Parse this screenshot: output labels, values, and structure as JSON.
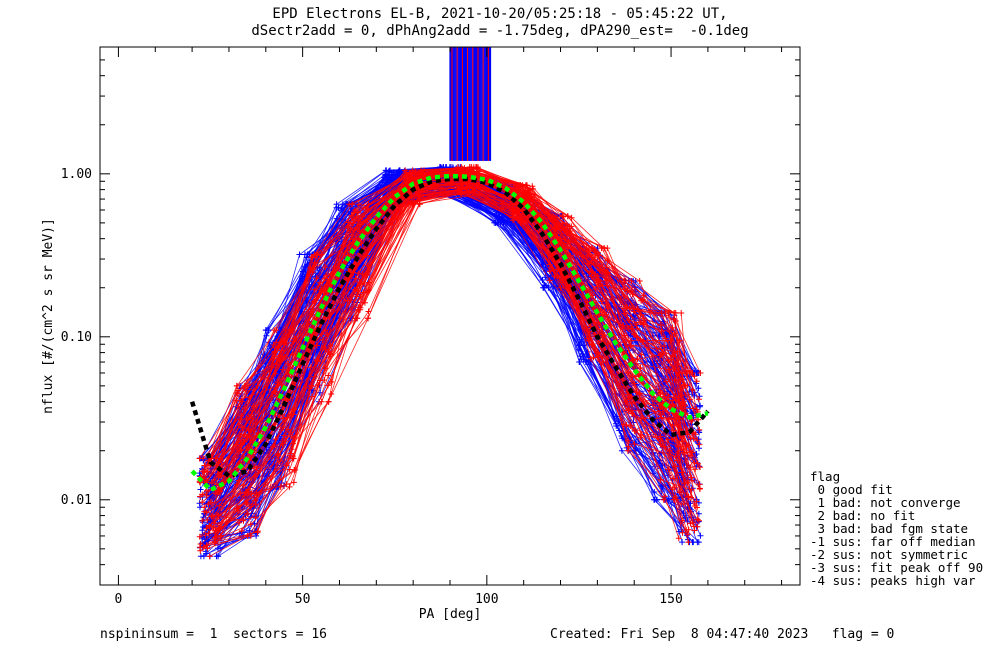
{
  "title_line1": "EPD Electrons EL-B, 2021-10-20/05:25:18 - 05:45:22 UT,",
  "title_line2": "dSectr2add = 0, dPhAng2add = -1.75deg, dPA290_est=  -0.1deg",
  "footer_left": "nspininsum =  1  sectors = 16",
  "footer_right": "Created: Fri Sep  8 04:47:40 2023   flag = 0",
  "legend": {
    "title": "flag",
    "items": [
      " 0 good fit",
      " 1 bad: not converge",
      " 2 bad: no fit",
      " 3 bad: bad fgm state",
      "-1 sus: far off median",
      "-2 sus: not symmetric",
      "-3 sus: fit peak off 90",
      "-4 sus: peaks high var"
    ]
  },
  "chart_data": {
    "type": "line",
    "title": "EPD Electrons EL-B, 2021-10-20/05:25:18 - 05:45:22 UT,",
    "subtitle": "dSectr2add = 0, dPhAng2add = -1.75deg, dPA290_est=  -0.1deg",
    "xlabel": "PA [deg]",
    "ylabel": "nflux [#/(cm^2 s sr MeV)]",
    "xlim": [
      -5,
      185
    ],
    "ylim": [
      0.003,
      6
    ],
    "yscale": "log",
    "x_ticks": [
      0,
      50,
      100,
      150
    ],
    "x_tick_labels": [
      "0",
      "50",
      "100",
      "150"
    ],
    "y_ticks": [
      0.01,
      0.1,
      1.0
    ],
    "y_tick_labels": [
      "0.01",
      "0.10",
      "1.00"
    ],
    "grid": false,
    "colors": {
      "red_traces": "#ff0000",
      "blue_traces": "#0000ff",
      "median_black": "#000000",
      "median_green": "#00ff00"
    },
    "series": [
      {
        "style": "black dashed",
        "x": [
          20,
          25,
          30,
          35,
          40,
          45,
          50,
          55,
          60,
          65,
          70,
          75,
          80,
          85,
          90,
          95,
          100,
          105,
          110,
          115,
          120,
          125,
          130,
          135,
          140,
          145,
          150,
          155,
          160
        ],
        "y": [
          0.04,
          0.017,
          0.014,
          0.015,
          0.022,
          0.038,
          0.068,
          0.12,
          0.2,
          0.31,
          0.46,
          0.64,
          0.8,
          0.9,
          0.93,
          0.93,
          0.88,
          0.77,
          0.61,
          0.43,
          0.28,
          0.17,
          0.1,
          0.065,
          0.043,
          0.031,
          0.025,
          0.026,
          0.035
        ]
      },
      {
        "style": "green dashed",
        "x": [
          20,
          25,
          30,
          35,
          40,
          45,
          50,
          55,
          60,
          65,
          70,
          75,
          80,
          85,
          90,
          95,
          100,
          105,
          110,
          115,
          120,
          125,
          130,
          135,
          140,
          145,
          150,
          155,
          160
        ],
        "y": [
          0.015,
          0.0115,
          0.013,
          0.018,
          0.028,
          0.048,
          0.085,
          0.15,
          0.25,
          0.38,
          0.54,
          0.72,
          0.87,
          0.95,
          0.97,
          0.96,
          0.92,
          0.82,
          0.67,
          0.5,
          0.34,
          0.22,
          0.14,
          0.091,
          0.063,
          0.045,
          0.036,
          0.032,
          0.034
        ]
      }
    ],
    "traces": {
      "count_red": 90,
      "count_blue": 140,
      "sample_pa_red": [
        25,
        35,
        45,
        55,
        65,
        80,
        95,
        110,
        120,
        130,
        140,
        150,
        155
      ],
      "sample_pa_blue": [
        25,
        35,
        42,
        52,
        62,
        75,
        90,
        105,
        118,
        128,
        138,
        148,
        155
      ],
      "envelope_min": [
        0.0045,
        0.006,
        0.012,
        0.04,
        0.13,
        0.65,
        0.75,
        0.5,
        0.2,
        0.07,
        0.02,
        0.01,
        0.0055
      ],
      "envelope_max": [
        0.018,
        0.05,
        0.11,
        0.32,
        0.65,
        1.05,
        1.1,
        0.85,
        0.55,
        0.35,
        0.22,
        0.14,
        0.06
      ]
    },
    "peak_spikes": {
      "x_range": [
        90,
        101
      ],
      "y_from": 1.2,
      "y_to": 6
    }
  }
}
